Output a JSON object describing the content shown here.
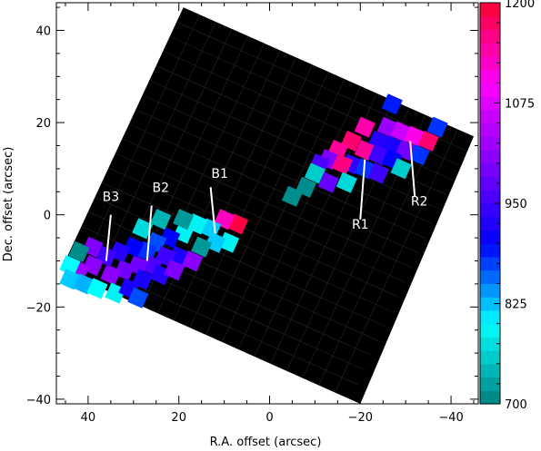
{
  "chart_data": {
    "type": "heatmap",
    "xlabel": "R.A. offset (arcsec)",
    "ylabel": "Dec. offset (arcsec)",
    "xlim": [
      47,
      -46
    ],
    "ylim": [
      -41,
      46
    ],
    "x_ticks": [
      40,
      20,
      0,
      -20,
      -40
    ],
    "x_tick_labels": [
      "40",
      "20",
      "0",
      "−20",
      "−40"
    ],
    "y_ticks": [
      40,
      20,
      0,
      -20,
      -40
    ],
    "y_tick_labels": [
      "40",
      "20",
      "0",
      "−20",
      "−40"
    ],
    "grid": false,
    "colorbar": {
      "min": 700,
      "max": 1200,
      "ticks": [
        700,
        825,
        950,
        1075,
        1200
      ],
      "tick_labels": [
        "700",
        "825",
        "950",
        "1075",
        "1200"
      ],
      "colors": [
        "#008080",
        "#00ffff",
        "#0000ff",
        "#8000ff",
        "#ff00ff",
        "#ff0030"
      ]
    },
    "map_corners": [
      [
        19,
        45
      ],
      [
        -45,
        17
      ],
      [
        -20,
        -41
      ],
      [
        46,
        -12
      ]
    ],
    "labels": [
      {
        "text": "B1",
        "x": 11,
        "y": 8,
        "line": [
          [
            13,
            6
          ],
          [
            12,
            -4
          ]
        ]
      },
      {
        "text": "B2",
        "x": 24,
        "y": 5,
        "line": [
          [
            26,
            2
          ],
          [
            27,
            -10
          ]
        ]
      },
      {
        "text": "B3",
        "x": 35,
        "y": 3,
        "line": [
          [
            35,
            0
          ],
          [
            36,
            -10
          ]
        ]
      },
      {
        "text": "R1",
        "x": -20,
        "y": -3,
        "line": [
          [
            -20,
            -1
          ],
          [
            -21,
            12
          ]
        ]
      },
      {
        "text": "R2",
        "x": -33,
        "y": 2,
        "line": [
          [
            -32,
            4
          ],
          [
            -31,
            16
          ]
        ]
      }
    ],
    "pixels": [
      {
        "x": -27,
        "y": 24,
        "v": 890
      },
      {
        "x": -26,
        "y": 19,
        "v": 1020
      },
      {
        "x": -29,
        "y": 18,
        "v": 1060
      },
      {
        "x": -32,
        "y": 17,
        "v": 1110
      },
      {
        "x": -35,
        "y": 16,
        "v": 1170
      },
      {
        "x": -37,
        "y": 19,
        "v": 880
      },
      {
        "x": -21,
        "y": 19,
        "v": 1140
      },
      {
        "x": -24,
        "y": 16,
        "v": 930
      },
      {
        "x": -27,
        "y": 15,
        "v": 920
      },
      {
        "x": -30,
        "y": 14,
        "v": 990
      },
      {
        "x": -33,
        "y": 13,
        "v": 880
      },
      {
        "x": -18,
        "y": 16,
        "v": 1170
      },
      {
        "x": -21,
        "y": 14,
        "v": 1150
      },
      {
        "x": -24,
        "y": 13,
        "v": 950
      },
      {
        "x": -27,
        "y": 12,
        "v": 900
      },
      {
        "x": -29,
        "y": 10,
        "v": 760
      },
      {
        "x": -15,
        "y": 14,
        "v": 1150
      },
      {
        "x": -13,
        "y": 12,
        "v": 1000
      },
      {
        "x": -18,
        "y": 11,
        "v": 940
      },
      {
        "x": -21,
        "y": 10,
        "v": 880
      },
      {
        "x": -24,
        "y": 9,
        "v": 950
      },
      {
        "x": -11,
        "y": 11,
        "v": 960
      },
      {
        "x": -16,
        "y": 11,
        "v": 1160
      },
      {
        "x": -13,
        "y": 7,
        "v": 980
      },
      {
        "x": -10,
        "y": 9,
        "v": 760
      },
      {
        "x": -8,
        "y": 6,
        "v": 710
      },
      {
        "x": -17,
        "y": 7,
        "v": 770
      },
      {
        "x": -5,
        "y": 4,
        "v": 710
      },
      {
        "x": 7,
        "y": -2,
        "v": 1190
      },
      {
        "x": 10,
        "y": -1,
        "v": 1130
      },
      {
        "x": 13,
        "y": -3,
        "v": 820
      },
      {
        "x": 9,
        "y": -6,
        "v": 790
      },
      {
        "x": 12,
        "y": -6,
        "v": 820
      },
      {
        "x": 15,
        "y": -7,
        "v": 720
      },
      {
        "x": 16,
        "y": -2,
        "v": 790
      },
      {
        "x": 19,
        "y": -4,
        "v": 790
      },
      {
        "x": 22,
        "y": -5,
        "v": 900
      },
      {
        "x": 25,
        "y": -6,
        "v": 870
      },
      {
        "x": 27,
        "y": -8,
        "v": 880
      },
      {
        "x": 20,
        "y": -9,
        "v": 920
      },
      {
        "x": 23,
        "y": -9,
        "v": 950
      },
      {
        "x": 26,
        "y": -11,
        "v": 960
      },
      {
        "x": 29,
        "y": -11,
        "v": 990
      },
      {
        "x": 32,
        "y": -12,
        "v": 990
      },
      {
        "x": 35,
        "y": -13,
        "v": 1010
      },
      {
        "x": 30,
        "y": -7,
        "v": 900
      },
      {
        "x": 33,
        "y": -8,
        "v": 930
      },
      {
        "x": 36,
        "y": -9,
        "v": 950
      },
      {
        "x": 39,
        "y": -7,
        "v": 1000
      },
      {
        "x": 39,
        "y": -11,
        "v": 1010
      },
      {
        "x": 42,
        "y": -8,
        "v": 710
      },
      {
        "x": 42,
        "y": -12,
        "v": 1020
      },
      {
        "x": 44,
        "y": -11,
        "v": 800
      },
      {
        "x": 44,
        "y": -14,
        "v": 820
      },
      {
        "x": 41,
        "y": -15,
        "v": 830
      },
      {
        "x": 38,
        "y": -16,
        "v": 800
      },
      {
        "x": 34,
        "y": -17,
        "v": 790
      },
      {
        "x": 31,
        "y": -16,
        "v": 920
      },
      {
        "x": 28,
        "y": -14,
        "v": 920
      },
      {
        "x": 24,
        "y": -13,
        "v": 930
      },
      {
        "x": 21,
        "y": -12,
        "v": 1000
      },
      {
        "x": 24,
        "y": -1,
        "v": 740
      },
      {
        "x": 28,
        "y": -3,
        "v": 770
      },
      {
        "x": 19,
        "y": -1,
        "v": 720
      },
      {
        "x": 17,
        "y": -10,
        "v": 1010
      },
      {
        "x": 29,
        "y": -18,
        "v": 870
      }
    ]
  }
}
